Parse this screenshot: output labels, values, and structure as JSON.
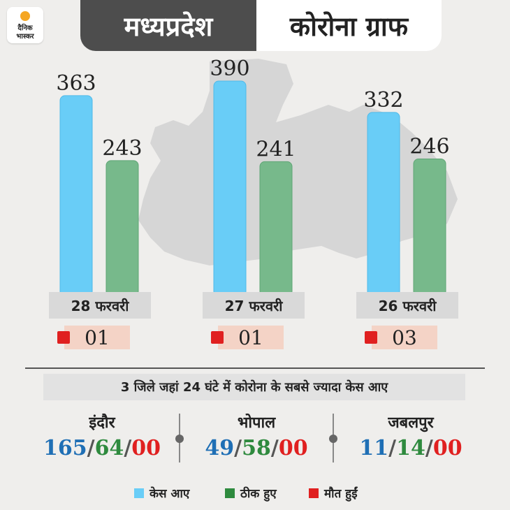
{
  "logo": {
    "line1": "दैनिक",
    "line2": "भास्कर"
  },
  "header": {
    "left": "मध्यप्रदेश",
    "right": "कोरोना ग्राफ"
  },
  "colors": {
    "cases": "#69cdf7",
    "recovered": "#77b98b",
    "deaths": "#e02020",
    "blue_text": "#1f6fb5",
    "green_text": "#2e8a3e"
  },
  "chart_data": {
    "type": "bar",
    "categories": [
      "28 फरवरी",
      "27 फरवरी",
      "26 फरवरी"
    ],
    "series": [
      {
        "name": "केस आए",
        "values": [
          363,
          390,
          332
        ]
      },
      {
        "name": "ठीक हुए",
        "values": [
          243,
          241,
          246
        ]
      }
    ],
    "deaths": [
      "01",
      "01",
      "03"
    ],
    "ylim": [
      0,
      420
    ],
    "grid": false,
    "legend": "bottom"
  },
  "subheading": "3 जिले जहां 24 घंटे में कोरोना के सबसे ज्यादा केस आए",
  "districts": [
    {
      "name": "इंदौर",
      "cases": "165",
      "recovered": "64",
      "deaths": "00"
    },
    {
      "name": "भोपाल",
      "cases": "49",
      "recovered": "58",
      "deaths": "00"
    },
    {
      "name": "जबलपुर",
      "cases": "11",
      "recovered": "14",
      "deaths": "00"
    }
  ],
  "separator": "/",
  "legend": {
    "cases": "केस आए",
    "recovered": "ठीक हुए",
    "deaths": "मौत हुईं"
  }
}
